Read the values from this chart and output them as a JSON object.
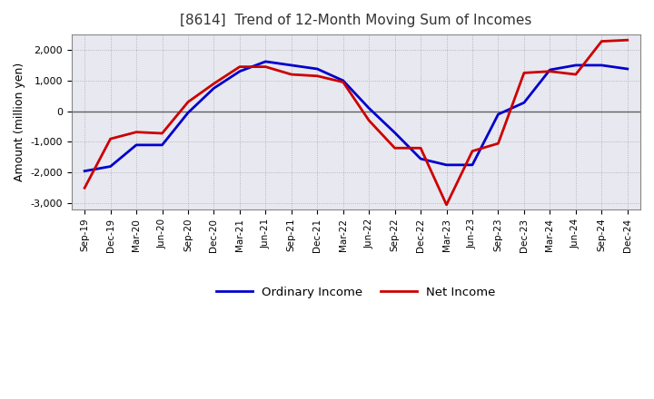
{
  "title": "[8614]  Trend of 12-Month Moving Sum of Incomes",
  "ylabel": "Amount (million yen)",
  "x_labels": [
    "Sep-19",
    "Dec-19",
    "Mar-20",
    "Jun-20",
    "Sep-20",
    "Dec-20",
    "Mar-21",
    "Jun-21",
    "Sep-21",
    "Dec-21",
    "Mar-22",
    "Jun-22",
    "Sep-22",
    "Dec-22",
    "Mar-23",
    "Jun-23",
    "Sep-23",
    "Dec-23",
    "Mar-24",
    "Jun-24",
    "Sep-24",
    "Dec-24"
  ],
  "ordinary_income": [
    -1950,
    -1800,
    -1100,
    -1100,
    -50,
    750,
    1300,
    1620,
    1500,
    1380,
    1000,
    100,
    -700,
    -1550,
    -1750,
    -1750,
    -100,
    280,
    1350,
    1500,
    1500,
    1380
  ],
  "net_income": [
    -2500,
    -900,
    -680,
    -720,
    300,
    900,
    1450,
    1450,
    1200,
    1150,
    950,
    -300,
    -1200,
    -1200,
    -3050,
    -1300,
    -1050,
    1250,
    1300,
    1200,
    2280,
    2320
  ],
  "ylim": [
    -3200,
    2500
  ],
  "yticks": [
    -3000,
    -2000,
    -1000,
    0,
    1000,
    2000
  ],
  "ordinary_color": "#0000cc",
  "net_color": "#cc0000",
  "background_color": "#ffffff",
  "plot_bg_color": "#e8e8f0",
  "grid_color": "#999999",
  "zero_line_color": "#606060",
  "legend_labels": [
    "Ordinary Income",
    "Net Income"
  ]
}
